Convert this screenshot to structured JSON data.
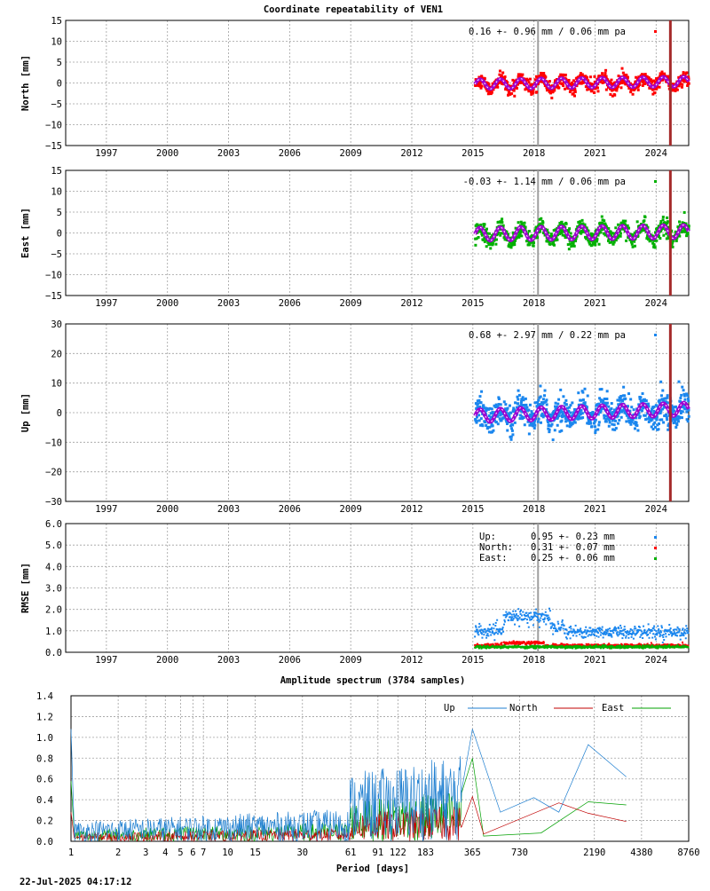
{
  "page": {
    "title": "Coordinate repeatability of VEN1",
    "footer_timestamp": "22-Jul-2025 04:17:12"
  },
  "colors": {
    "north": "#ff0000",
    "east": "#00b000",
    "up": "#1a86ee",
    "model": "#a000d0",
    "model_core": "#ffffff",
    "event_line": "#a52a2a",
    "marker_line": "#a0a0a0",
    "spec_up": "#1f7fd0",
    "spec_north": "#c00000",
    "spec_east": "#00a000",
    "grid": "#a0a0a0"
  },
  "chart_data": [
    {
      "id": "north",
      "type": "scatter",
      "ylabel": "North [mm]",
      "ylim": [
        -15,
        15
      ],
      "yticks": [
        -15,
        -10,
        -5,
        0,
        5,
        10,
        15
      ],
      "xlim": [
        1995,
        2025.6
      ],
      "xticks": [
        1997,
        2000,
        2003,
        2006,
        2009,
        2012,
        2015,
        2018,
        2021,
        2024
      ],
      "annotation": "0.16 +- 0.96 mm /  0.06 mm pa",
      "series": {
        "name": "North",
        "start": 2015.1,
        "end": 2025.6,
        "amplitude": 1.2,
        "trend_pa": 0.06,
        "offset": 0.16,
        "scatter_sd": 0.96
      },
      "event_lines": [
        2024.7
      ],
      "marker_lines": [
        2018.2
      ]
    },
    {
      "id": "east",
      "type": "scatter",
      "ylabel": "East [mm]",
      "ylim": [
        -15,
        15
      ],
      "yticks": [
        -15,
        -10,
        -5,
        0,
        5,
        10,
        15
      ],
      "xlim": [
        1995,
        2025.6
      ],
      "xticks": [
        1997,
        2000,
        2003,
        2006,
        2009,
        2012,
        2015,
        2018,
        2021,
        2024
      ],
      "annotation": "-0.03 +- 1.14 mm /  0.06 mm pa",
      "series": {
        "name": "East",
        "start": 2015.1,
        "end": 2025.6,
        "amplitude": 1.6,
        "trend_pa": 0.06,
        "offset": -0.03,
        "scatter_sd": 1.14
      },
      "event_lines": [
        2024.7
      ],
      "marker_lines": [
        2018.2
      ]
    },
    {
      "id": "up",
      "type": "scatter",
      "ylabel": "Up [mm]",
      "ylim": [
        -30,
        30
      ],
      "yticks": [
        -30,
        -20,
        -10,
        0,
        10,
        20,
        30
      ],
      "xlim": [
        1995,
        2025.6
      ],
      "xticks": [
        1997,
        2000,
        2003,
        2006,
        2009,
        2012,
        2015,
        2018,
        2021,
        2024
      ],
      "annotation": "0.68 +- 2.97 mm /  0.22 mm pa",
      "series": {
        "name": "Up",
        "start": 2015.1,
        "end": 2025.6,
        "amplitude": 2.2,
        "trend_pa": 0.22,
        "offset": 0.68,
        "scatter_sd": 2.97
      },
      "event_lines": [
        2024.7
      ],
      "marker_lines": [
        2018.2
      ]
    },
    {
      "id": "rmse",
      "type": "scatter",
      "ylabel": "RMSE [mm]",
      "ylim": [
        0,
        6
      ],
      "yticks": [
        "0.0",
        "1.0",
        "2.0",
        "3.0",
        "4.0",
        "5.0",
        "6.0"
      ],
      "xlim": [
        1995,
        2025.6
      ],
      "xticks": [
        1997,
        2000,
        2003,
        2006,
        2009,
        2012,
        2015,
        2018,
        2021,
        2024
      ],
      "legend": [
        {
          "name": "Up:",
          "value": "0.95 +- 0.23 mm"
        },
        {
          "name": "North:",
          "value": "0.31 +- 0.07 mm"
        },
        {
          "name": "East:",
          "value": "0.25 +- 0.06 mm"
        }
      ],
      "series": [
        {
          "name": "Up",
          "mean": 0.95
        },
        {
          "name": "North",
          "mean": 0.31
        },
        {
          "name": "East",
          "mean": 0.25
        }
      ],
      "marker_lines": [
        2018.2
      ]
    },
    {
      "id": "spectrum",
      "type": "line",
      "title": "Amplitude spectrum (3784 samples)",
      "xlabel": "Period [days]",
      "xscale": "log",
      "xlim": [
        1,
        8760
      ],
      "xticks": [
        1,
        2,
        3,
        4,
        5,
        6,
        7,
        10,
        15,
        30,
        61,
        91,
        122,
        183,
        365,
        730,
        2190,
        4380,
        8760
      ],
      "ylim": [
        0,
        1.4
      ],
      "yticks": [
        "0.0",
        "0.2",
        "0.4",
        "0.6",
        "0.8",
        "1.0",
        "1.2",
        "1.4"
      ],
      "legend": [
        "Up",
        "North",
        "East"
      ],
      "series": [
        {
          "name": "Up",
          "peaks": [
            [
              1,
              1.08
            ],
            [
              365,
              1.08
            ],
            [
              550,
              0.28
            ],
            [
              900,
              0.42
            ],
            [
              1300,
              0.28
            ],
            [
              2000,
              0.93
            ],
            [
              3500,
              0.62
            ]
          ]
        },
        {
          "name": "North",
          "peaks": [
            [
              1,
              0.28
            ],
            [
              365,
              0.43
            ],
            [
              430,
              0.07
            ],
            [
              1300,
              0.37
            ],
            [
              2000,
              0.27
            ],
            [
              3500,
              0.19
            ]
          ]
        },
        {
          "name": "East",
          "peaks": [
            [
              1,
              0.58
            ],
            [
              365,
              0.8
            ],
            [
              430,
              0.05
            ],
            [
              1000,
              0.08
            ],
            [
              2000,
              0.38
            ],
            [
              3500,
              0.35
            ]
          ]
        }
      ]
    }
  ]
}
